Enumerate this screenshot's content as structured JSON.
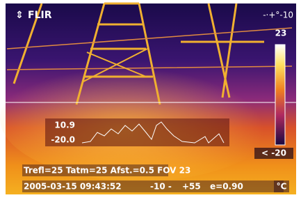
{
  "logo": "FLIR",
  "top_right": "-·+°-10",
  "scale": {
    "max": "23",
    "min": "< -20"
  },
  "profile": {
    "max": "10.9",
    "min": "-20.0"
  },
  "info_line": "Trefl=25 Tatm=25 Afst.=0.5 FOV 23",
  "status": {
    "datetime": "2005-03-15 09:43:52",
    "range_low": "-10 -",
    "range_high": "+55",
    "emissivity": "e=0.90",
    "unit": "°C"
  }
}
